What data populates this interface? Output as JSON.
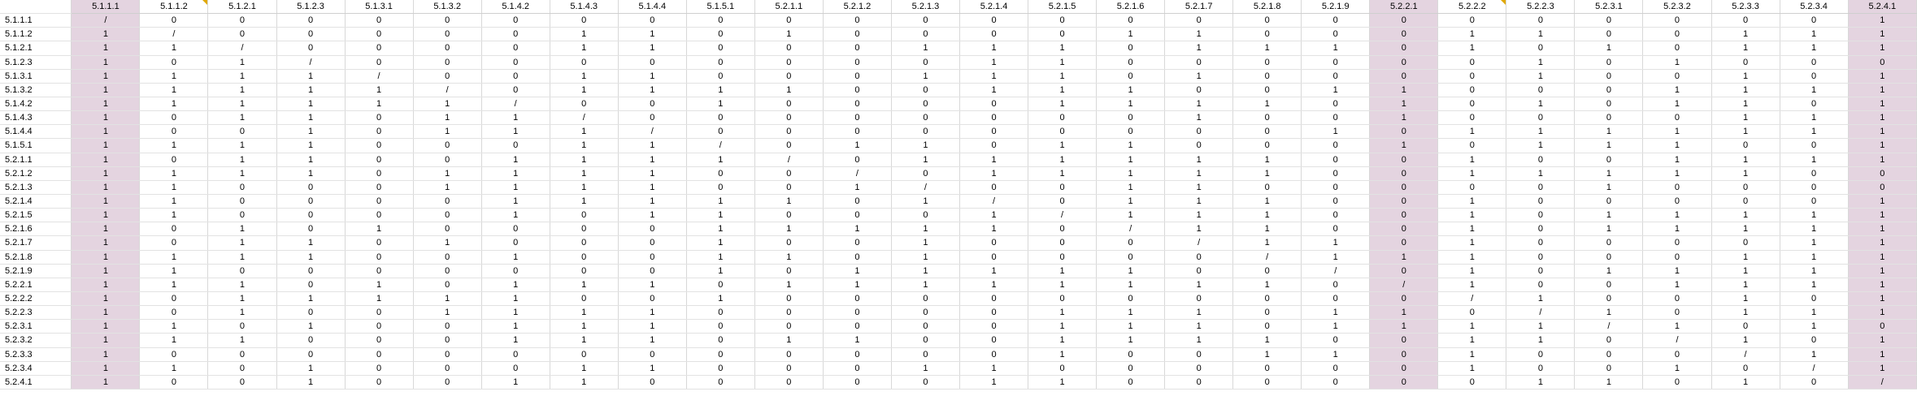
{
  "columns": [
    "5.1.1.1",
    "5.1.1.2",
    "5.1.2.1",
    "5.1.2.3",
    "5.1.3.1",
    "5.1.3.2",
    "5.1.4.2",
    "5.1.4.3",
    "5.1.4.4",
    "5.1.5.1",
    "5.2.1.1",
    "5.2.1.2",
    "5.2.1.3",
    "5.2.1.4",
    "5.2.1.5",
    "5.2.1.6",
    "5.2.1.7",
    "5.2.1.8",
    "5.2.1.9",
    "5.2.2.1",
    "5.2.2.2",
    "5.2.2.3",
    "5.2.3.1",
    "5.2.3.2",
    "5.2.3.3",
    "5.2.3.4",
    "5.2.4.1"
  ],
  "highlight_color": "#e4d4e0",
  "comment_marker_color": "#e0a800",
  "highlighted_columns": [
    "5.1.1.1",
    "5.2.2.1",
    "5.2.4.1"
  ],
  "commented_columns": [
    "5.1.1.2",
    "5.2.2.2"
  ],
  "rows": [
    {
      "label": "5.1.1.1",
      "cells": [
        "/",
        "0",
        "0",
        "0",
        "0",
        "0",
        "0",
        "0",
        "0",
        "0",
        "0",
        "0",
        "0",
        "0",
        "0",
        "0",
        "0",
        "0",
        "0",
        "0",
        "0",
        "0",
        "0",
        "0",
        "0",
        "0",
        "1"
      ]
    },
    {
      "label": "5.1.1.2",
      "cells": [
        "1",
        "/",
        "0",
        "0",
        "0",
        "0",
        "0",
        "1",
        "1",
        "0",
        "1",
        "0",
        "0",
        "0",
        "0",
        "1",
        "1",
        "0",
        "0",
        "0",
        "1",
        "1",
        "0",
        "0",
        "1",
        "1",
        "1"
      ]
    },
    {
      "label": "5.1.2.1",
      "cells": [
        "1",
        "1",
        "/",
        "0",
        "0",
        "0",
        "0",
        "1",
        "1",
        "0",
        "0",
        "0",
        "1",
        "1",
        "1",
        "0",
        "1",
        "1",
        "1",
        "0",
        "1",
        "0",
        "1",
        "0",
        "1",
        "1",
        "1"
      ]
    },
    {
      "label": "5.1.2.3",
      "cells": [
        "1",
        "0",
        "1",
        "/",
        "0",
        "0",
        "0",
        "0",
        "0",
        "0",
        "0",
        "0",
        "0",
        "1",
        "1",
        "0",
        "0",
        "0",
        "0",
        "0",
        "0",
        "1",
        "0",
        "1",
        "0",
        "0",
        "0"
      ]
    },
    {
      "label": "5.1.3.1",
      "cells": [
        "1",
        "1",
        "1",
        "1",
        "/",
        "0",
        "0",
        "1",
        "1",
        "0",
        "0",
        "0",
        "1",
        "1",
        "1",
        "0",
        "1",
        "0",
        "0",
        "0",
        "0",
        "1",
        "0",
        "0",
        "1",
        "0",
        "1"
      ]
    },
    {
      "label": "5.1.3.2",
      "cells": [
        "1",
        "1",
        "1",
        "1",
        "1",
        "/",
        "0",
        "1",
        "1",
        "1",
        "1",
        "0",
        "0",
        "1",
        "1",
        "1",
        "0",
        "0",
        "1",
        "1",
        "0",
        "0",
        "0",
        "1",
        "1",
        "1",
        "1"
      ]
    },
    {
      "label": "5.1.4.2",
      "cells": [
        "1",
        "1",
        "1",
        "1",
        "1",
        "1",
        "/",
        "0",
        "0",
        "1",
        "0",
        "0",
        "0",
        "0",
        "1",
        "1",
        "1",
        "1",
        "0",
        "1",
        "0",
        "1",
        "0",
        "1",
        "1",
        "0",
        "1"
      ]
    },
    {
      "label": "5.1.4.3",
      "cells": [
        "1",
        "0",
        "1",
        "1",
        "0",
        "1",
        "1",
        "/",
        "0",
        "0",
        "0",
        "0",
        "0",
        "0",
        "0",
        "0",
        "1",
        "0",
        "0",
        "1",
        "0",
        "0",
        "0",
        "0",
        "1",
        "1",
        "1"
      ]
    },
    {
      "label": "5.1.4.4",
      "cells": [
        "1",
        "0",
        "0",
        "1",
        "0",
        "1",
        "1",
        "1",
        "/",
        "0",
        "0",
        "0",
        "0",
        "0",
        "0",
        "0",
        "0",
        "0",
        "1",
        "0",
        "1",
        "1",
        "1",
        "1",
        "1",
        "1",
        "1"
      ]
    },
    {
      "label": "5.1.5.1",
      "cells": [
        "1",
        "1",
        "1",
        "1",
        "0",
        "0",
        "0",
        "1",
        "1",
        "/",
        "0",
        "1",
        "1",
        "0",
        "1",
        "1",
        "0",
        "0",
        "0",
        "1",
        "0",
        "1",
        "1",
        "1",
        "0",
        "0",
        "1"
      ]
    },
    {
      "label": "5.2.1.1",
      "cells": [
        "1",
        "0",
        "1",
        "1",
        "0",
        "0",
        "1",
        "1",
        "1",
        "1",
        "/",
        "0",
        "1",
        "1",
        "1",
        "1",
        "1",
        "1",
        "0",
        "0",
        "1",
        "0",
        "0",
        "1",
        "1",
        "1",
        "1"
      ]
    },
    {
      "label": "5.2.1.2",
      "cells": [
        "1",
        "1",
        "1",
        "1",
        "0",
        "1",
        "1",
        "1",
        "1",
        "0",
        "0",
        "/",
        "0",
        "1",
        "1",
        "1",
        "1",
        "1",
        "0",
        "0",
        "1",
        "1",
        "1",
        "1",
        "1",
        "0",
        "0"
      ]
    },
    {
      "label": "5.2.1.3",
      "cells": [
        "1",
        "1",
        "0",
        "0",
        "0",
        "1",
        "1",
        "1",
        "1",
        "0",
        "0",
        "1",
        "/",
        "0",
        "0",
        "1",
        "1",
        "0",
        "0",
        "0",
        "0",
        "0",
        "1",
        "0",
        "0",
        "0",
        "0"
      ]
    },
    {
      "label": "5.2.1.4",
      "cells": [
        "1",
        "1",
        "0",
        "0",
        "0",
        "0",
        "1",
        "1",
        "1",
        "1",
        "1",
        "0",
        "1",
        "/",
        "0",
        "1",
        "1",
        "1",
        "0",
        "0",
        "1",
        "0",
        "0",
        "0",
        "0",
        "0",
        "1"
      ]
    },
    {
      "label": "5.2.1.5",
      "cells": [
        "1",
        "1",
        "0",
        "0",
        "0",
        "0",
        "1",
        "0",
        "1",
        "1",
        "0",
        "0",
        "0",
        "1",
        "/",
        "1",
        "1",
        "1",
        "0",
        "0",
        "1",
        "0",
        "1",
        "1",
        "1",
        "1",
        "1"
      ]
    },
    {
      "label": "5.2.1.6",
      "cells": [
        "1",
        "0",
        "1",
        "0",
        "1",
        "0",
        "0",
        "0",
        "0",
        "1",
        "1",
        "1",
        "1",
        "1",
        "0",
        "/",
        "1",
        "1",
        "0",
        "0",
        "1",
        "0",
        "1",
        "1",
        "1",
        "1",
        "1"
      ]
    },
    {
      "label": "5.2.1.7",
      "cells": [
        "1",
        "0",
        "1",
        "1",
        "0",
        "1",
        "0",
        "0",
        "0",
        "1",
        "0",
        "0",
        "1",
        "0",
        "0",
        "0",
        "/",
        "1",
        "1",
        "0",
        "1",
        "0",
        "0",
        "0",
        "0",
        "1",
        "1"
      ]
    },
    {
      "label": "5.2.1.8",
      "cells": [
        "1",
        "1",
        "1",
        "1",
        "0",
        "0",
        "1",
        "0",
        "0",
        "1",
        "1",
        "0",
        "1",
        "0",
        "0",
        "0",
        "0",
        "/",
        "1",
        "1",
        "1",
        "0",
        "0",
        "0",
        "1",
        "1",
        "1"
      ]
    },
    {
      "label": "5.2.1.9",
      "cells": [
        "1",
        "1",
        "0",
        "0",
        "0",
        "0",
        "0",
        "0",
        "0",
        "1",
        "0",
        "1",
        "1",
        "1",
        "1",
        "1",
        "0",
        "0",
        "/",
        "0",
        "1",
        "0",
        "1",
        "1",
        "1",
        "1",
        "1"
      ]
    },
    {
      "label": "5.2.2.1",
      "cells": [
        "1",
        "1",
        "1",
        "0",
        "1",
        "0",
        "1",
        "1",
        "1",
        "0",
        "1",
        "1",
        "1",
        "1",
        "1",
        "1",
        "1",
        "1",
        "0",
        "/",
        "1",
        "0",
        "0",
        "1",
        "1",
        "1",
        "1"
      ]
    },
    {
      "label": "5.2.2.2",
      "cells": [
        "1",
        "0",
        "1",
        "1",
        "1",
        "1",
        "1",
        "0",
        "0",
        "1",
        "0",
        "0",
        "0",
        "0",
        "0",
        "0",
        "0",
        "0",
        "0",
        "0",
        "/",
        "1",
        "0",
        "0",
        "1",
        "0",
        "1"
      ]
    },
    {
      "label": "5.2.2.3",
      "cells": [
        "1",
        "0",
        "1",
        "0",
        "0",
        "1",
        "1",
        "1",
        "1",
        "0",
        "0",
        "0",
        "0",
        "0",
        "1",
        "1",
        "1",
        "0",
        "1",
        "1",
        "0",
        "/",
        "1",
        "0",
        "1",
        "1",
        "1"
      ]
    },
    {
      "label": "5.2.3.1",
      "cells": [
        "1",
        "1",
        "0",
        "1",
        "0",
        "0",
        "1",
        "1",
        "1",
        "0",
        "0",
        "0",
        "0",
        "0",
        "1",
        "1",
        "1",
        "0",
        "1",
        "1",
        "1",
        "1",
        "/",
        "1",
        "0",
        "1",
        "0"
      ]
    },
    {
      "label": "5.2.3.2",
      "cells": [
        "1",
        "1",
        "1",
        "0",
        "0",
        "0",
        "1",
        "1",
        "1",
        "0",
        "1",
        "1",
        "0",
        "0",
        "1",
        "1",
        "1",
        "1",
        "0",
        "0",
        "1",
        "1",
        "0",
        "/",
        "1",
        "0",
        "1"
      ]
    },
    {
      "label": "5.2.3.3",
      "cells": [
        "1",
        "0",
        "0",
        "0",
        "0",
        "0",
        "0",
        "0",
        "0",
        "0",
        "0",
        "0",
        "0",
        "0",
        "1",
        "0",
        "0",
        "1",
        "1",
        "0",
        "1",
        "0",
        "0",
        "0",
        "/",
        "1",
        "1"
      ]
    },
    {
      "label": "5.2.3.4",
      "cells": [
        "1",
        "1",
        "0",
        "1",
        "0",
        "0",
        "0",
        "1",
        "1",
        "0",
        "0",
        "0",
        "1",
        "1",
        "0",
        "0",
        "0",
        "0",
        "0",
        "0",
        "1",
        "0",
        "0",
        "1",
        "0",
        "/",
        "1"
      ]
    },
    {
      "label": "5.2.4.1",
      "cells": [
        "1",
        "0",
        "0",
        "1",
        "0",
        "0",
        "1",
        "1",
        "0",
        "0",
        "0",
        "0",
        "0",
        "1",
        "1",
        "0",
        "0",
        "0",
        "0",
        "0",
        "0",
        "1",
        "1",
        "0",
        "1",
        "0",
        "/"
      ]
    }
  ]
}
